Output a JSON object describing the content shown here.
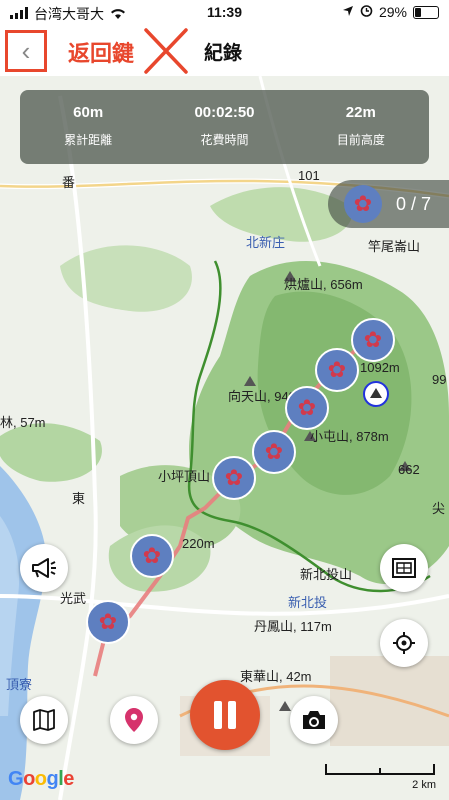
{
  "status": {
    "carrier": "台湾大哥大",
    "time": "11:39",
    "battery": "29%",
    "battery_level": 0.29
  },
  "nav": {
    "back_glyph": "‹",
    "annotation": "返回鍵",
    "title": "紀錄"
  },
  "stats": [
    {
      "value": "60m",
      "label": "累計距離"
    },
    {
      "value": "00:02:50",
      "label": "花費時間"
    },
    {
      "value": "22m",
      "label": "目前高度"
    }
  ],
  "photo_counter": "0 / 7",
  "map_labels": {
    "l1": "番",
    "l2": "北新庄",
    "l3": "竿尾崙山",
    "l4": "烘爐山, 656m",
    "l5": "1092m",
    "l6": "向天山, 949m",
    "l7": "小屯山, 878m",
    "l8": "林, 57m",
    "l9": "小坪頂山",
    "l10": "662",
    "l11": "東",
    "l12": "220m",
    "l13": "新北投山",
    "l14": "新北投",
    "l15": "丹鳳山, 117m",
    "l16": "光武",
    "l17": "頂寮",
    "l18": "東華山, 42m",
    "l19": "尖",
    "l20": "99",
    "l21": "101"
  },
  "buttons": {
    "speaker": "speaker-icon",
    "layer": "map-frame-icon",
    "locate": "crosshair-icon",
    "map": "map-icon",
    "pin": "location-pin-icon",
    "pause": "pause-icon",
    "camera": "camera-icon"
  },
  "attribution": "Google",
  "scale_label": "2 km",
  "colors": {
    "accent": "#e2532f",
    "annotation": "#e8472d",
    "route": "#e87e7e",
    "forest": "#8fbf7a",
    "photo_marker": "#5e7fc0"
  }
}
